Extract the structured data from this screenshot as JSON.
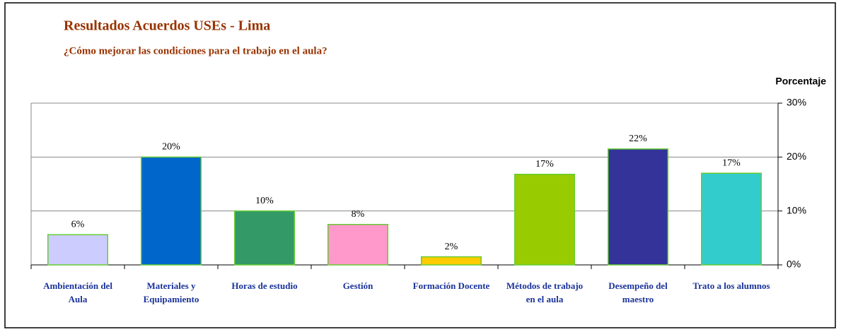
{
  "chart_data": {
    "type": "bar",
    "title": "Resultados Acuerdos USEs - Lima",
    "subtitle": "¿Cómo mejorar las condiciones para el trabajo en el aula?",
    "y_label": "Porcentaje",
    "categories": [
      "Ambientación del Aula",
      "Materiales y Equipamiento",
      "Horas de estudio",
      "Gestión",
      "Formación Docente",
      "Métodos de trabajo en el aula",
      "Desempeño del maestro",
      "Trato a los alumnos"
    ],
    "values": [
      5.6,
      20,
      10,
      7.5,
      1.5,
      16.8,
      21.5,
      17
    ],
    "value_labels": [
      "6%",
      "20%",
      "10%",
      "8%",
      "2%",
      "17%",
      "22%",
      "17%"
    ],
    "colors": [
      "#ccccff",
      "#0066cc",
      "#339966",
      "#ff99cc",
      "#ffcc00",
      "#99cc00",
      "#333399",
      "#33cccc"
    ],
    "ylim": [
      0,
      30
    ],
    "yticks": [
      {
        "value": 0,
        "label": "0%"
      },
      {
        "value": 10,
        "label": "10%"
      },
      {
        "value": 20,
        "label": "20%"
      },
      {
        "value": 30,
        "label": "30%"
      }
    ],
    "y_axis_side": "right",
    "grid": true
  }
}
